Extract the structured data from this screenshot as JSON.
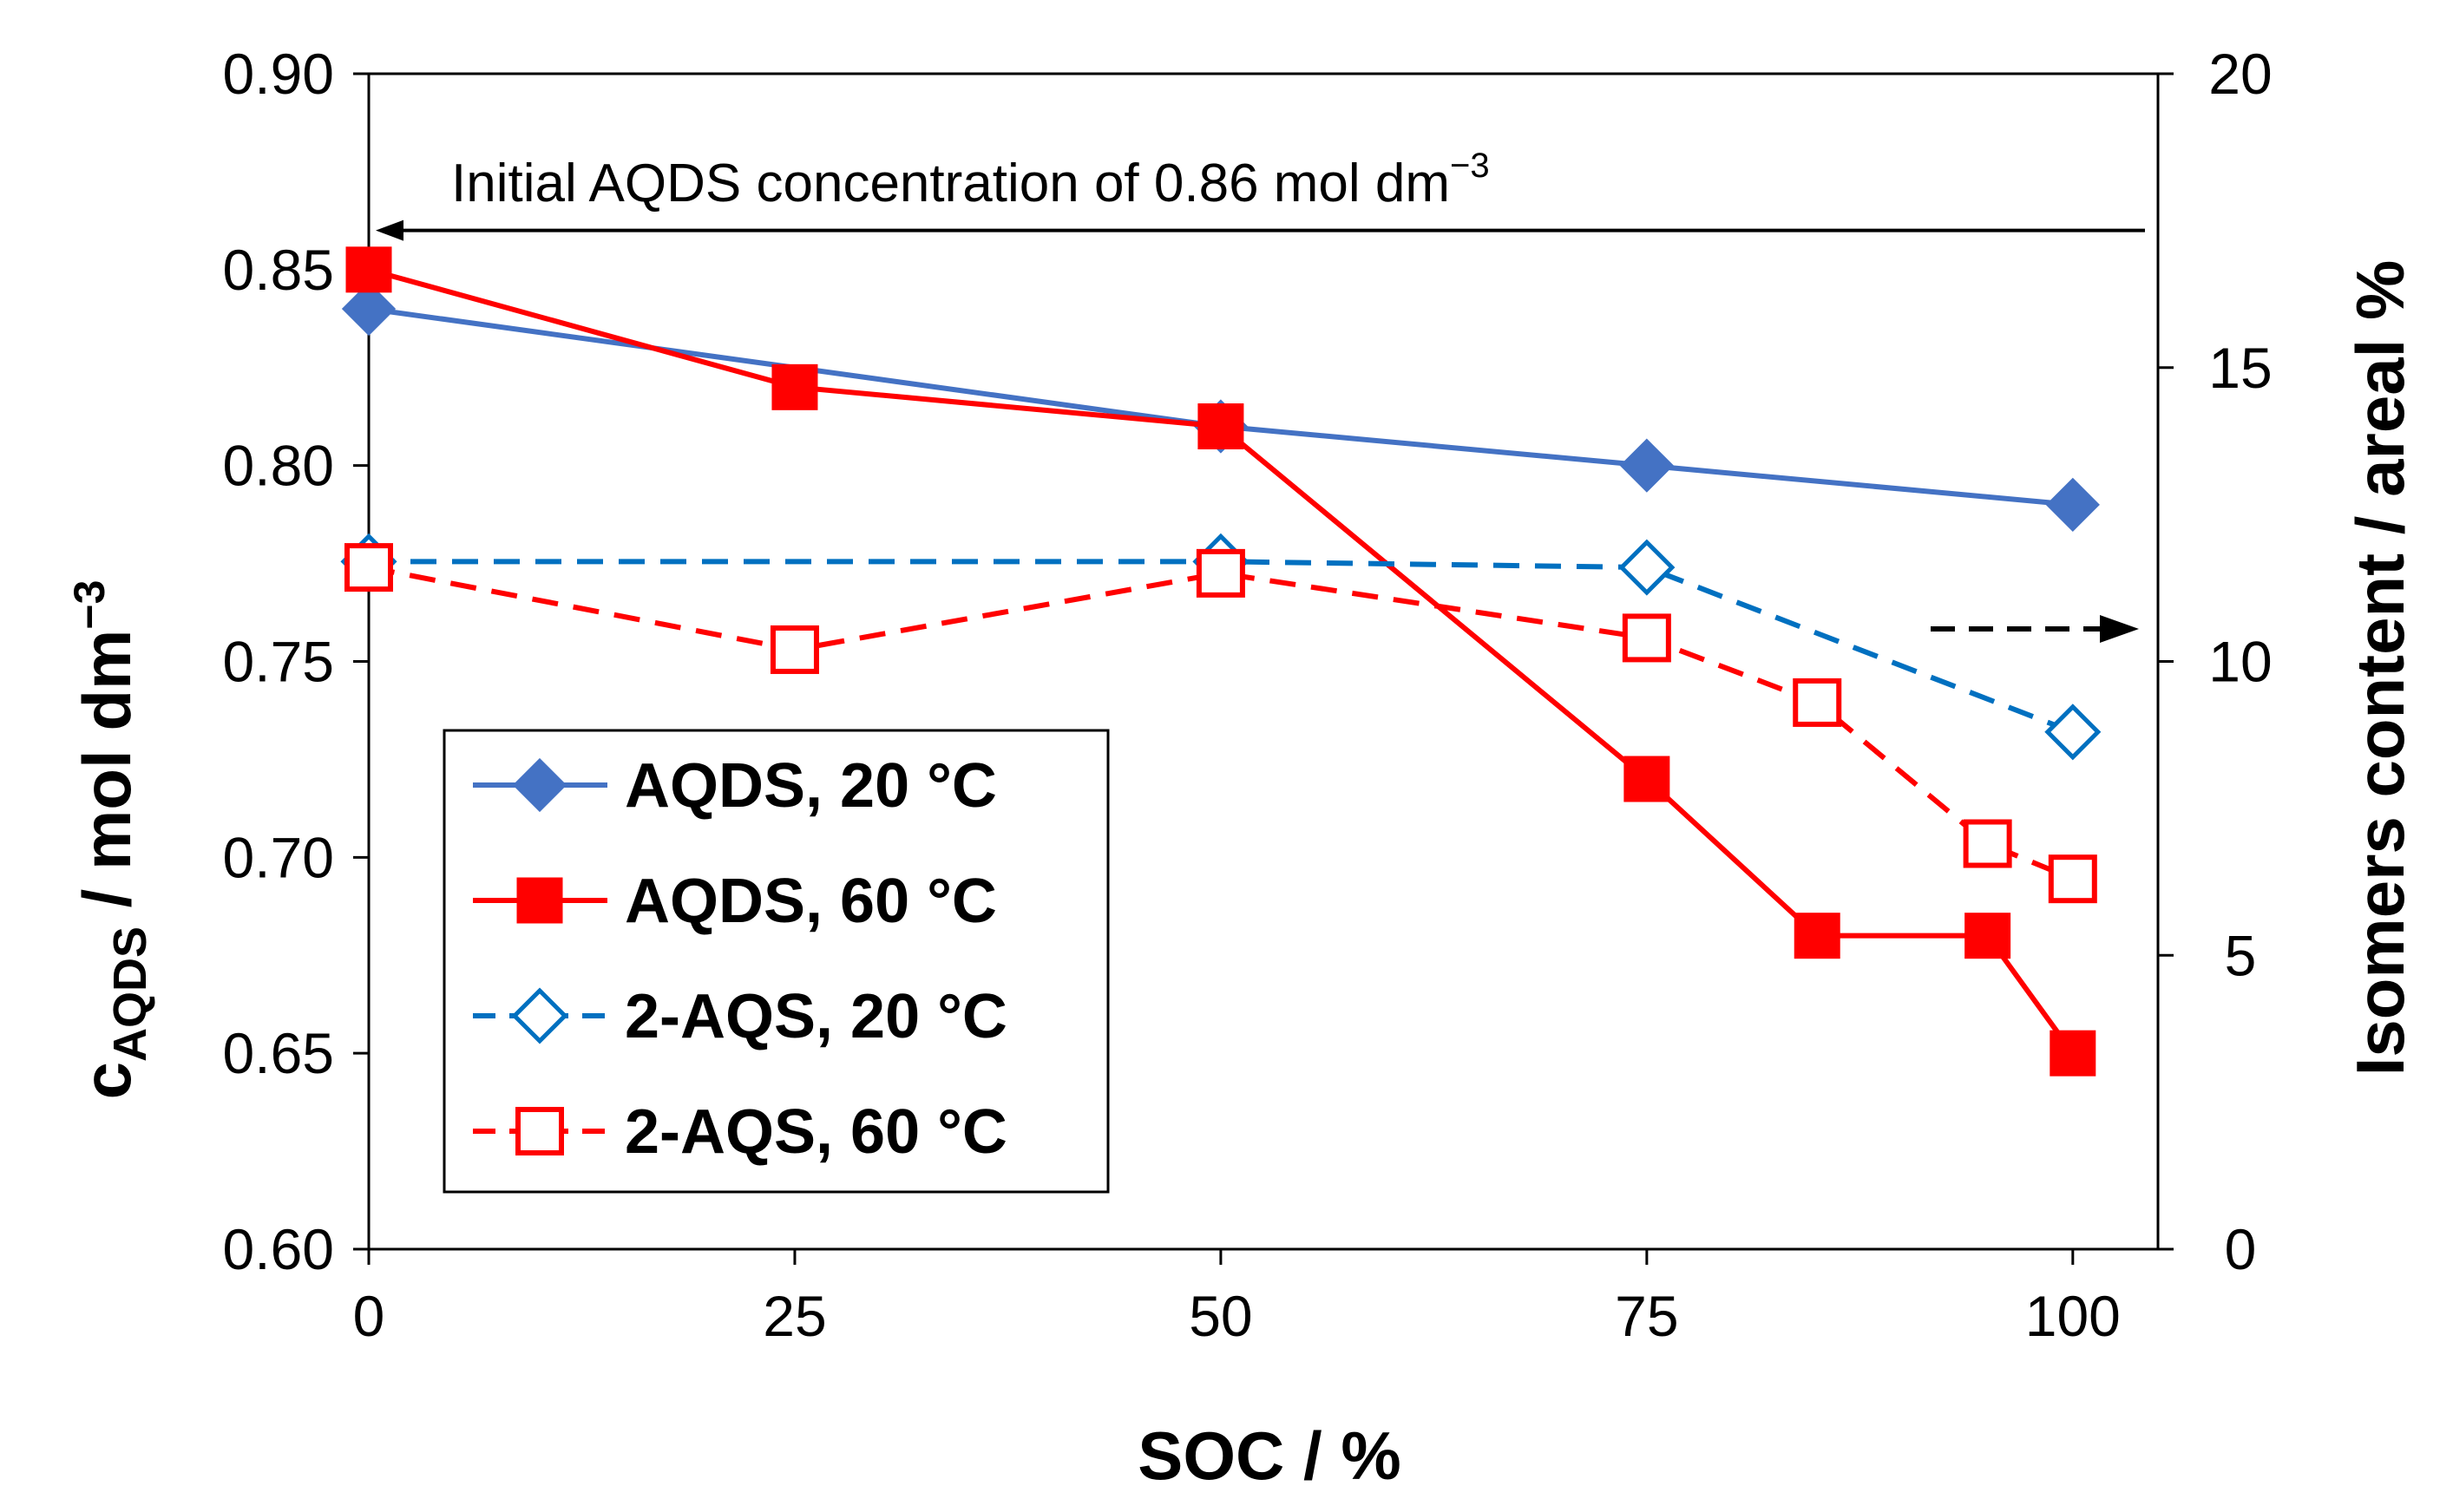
{
  "chart_data": {
    "type": "line",
    "xlabel": "SOC / %",
    "ylabel_left": {
      "main": "c",
      "sub": "AQDS",
      "rest": " / mol dm",
      "sup": "−3"
    },
    "ylabel_right": "Isomers content / areal %",
    "xlim": [
      0,
      105
    ],
    "ylim_left": [
      0.6,
      0.9
    ],
    "ylim_right": [
      0,
      20
    ],
    "x_ticks": [
      0,
      25,
      50,
      75,
      100
    ],
    "y_ticks_left": [
      0.6,
      0.65,
      0.7,
      0.75,
      0.8,
      0.85,
      0.9
    ],
    "y_tick_labels_left": [
      "0.60",
      "0.65",
      "0.70",
      "0.75",
      "0.80",
      "0.85",
      "0.90"
    ],
    "y_ticks_right": [
      0,
      5,
      10,
      15,
      20
    ],
    "annotation": {
      "text": "Initial AQDS concentration of 0.86 mol dm",
      "sup": "−3",
      "value": 0.86
    },
    "series": [
      {
        "name": "AQDS, 20 °C",
        "axis": "left",
        "color": "#4472C4",
        "style": "solid",
        "marker": "diamond-filled",
        "x": [
          0,
          50,
          75,
          100
        ],
        "y": [
          0.84,
          0.81,
          0.8,
          0.79
        ]
      },
      {
        "name": "AQDS, 60 °C",
        "axis": "left",
        "color": "#FF0000",
        "style": "solid",
        "marker": "square-filled",
        "x": [
          0,
          25,
          50,
          75,
          85,
          95,
          100
        ],
        "y": [
          0.85,
          0.82,
          0.81,
          0.72,
          0.68,
          0.68,
          0.65
        ]
      },
      {
        "name": "2-AQS, 20 °C",
        "axis": "right",
        "color": "#0070C0",
        "style": "dashed",
        "marker": "diamond-open",
        "x": [
          0,
          50,
          75,
          100
        ],
        "y": [
          11.7,
          11.7,
          11.6,
          8.8
        ]
      },
      {
        "name": "2-AQS, 60 °C",
        "axis": "right",
        "color": "#FF0000",
        "style": "dashed",
        "marker": "square-open",
        "x": [
          0,
          25,
          50,
          75,
          85,
          95,
          100
        ],
        "y": [
          11.6,
          10.2,
          11.5,
          10.4,
          9.3,
          6.9,
          6.3
        ]
      }
    ]
  }
}
